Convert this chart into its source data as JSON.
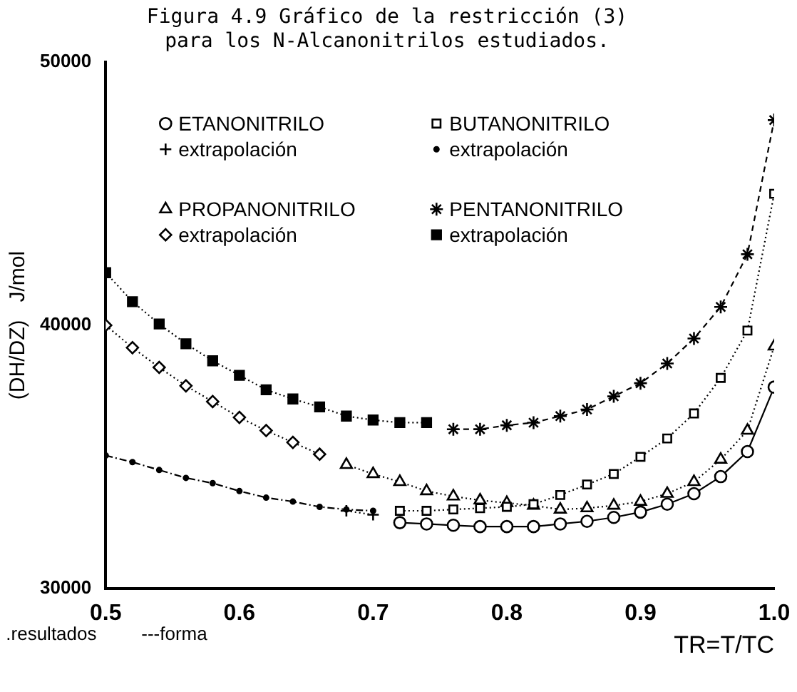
{
  "chart_data": {
    "type": "line",
    "title": "Figura 4.9 Gráfico de la restricción (3)\npara los N-Alcanonitrilos estudiados.",
    "xlabel": "TR=T/TC",
    "ylabel": "(DH/DZ)   J/mol",
    "xlim": [
      0.5,
      1.0
    ],
    "xticks": [
      {
        "value": 0.5,
        "label": "0.5"
      },
      {
        "value": 0.6,
        "label": "0.6"
      },
      {
        "value": 0.7,
        "label": "0.7"
      },
      {
        "value": 0.8,
        "label": "0.8"
      },
      {
        "value": 0.9,
        "label": "0.9"
      },
      {
        "value": 1.0,
        "label": "1.0"
      }
    ],
    "ylim": [
      30000,
      50000
    ],
    "yticks": [
      30000,
      40000,
      50000
    ],
    "grid": false,
    "legend": "top",
    "annotations": [
      ".resultados",
      "---forma"
    ],
    "series": [
      {
        "name": "ETANONITRILO",
        "color": "#000000",
        "marker": "circle",
        "line_style": "solid",
        "x": [
          0.72,
          0.74,
          0.76,
          0.78,
          0.8,
          0.82,
          0.84,
          0.86,
          0.88,
          0.9,
          0.92,
          0.94,
          0.96,
          0.98,
          1.0
        ],
        "values": [
          32500,
          32450,
          32400,
          32350,
          32350,
          32350,
          32450,
          32550,
          32700,
          32900,
          33200,
          33600,
          34250,
          35200,
          37650
        ]
      },
      {
        "name": "extrapolación",
        "color": "#000000",
        "marker": "cross",
        "line_style": "dotted",
        "x": [
          0.68,
          0.7
        ],
        "values": [
          32950,
          32800
        ]
      },
      {
        "name": "PROPANONITRILO",
        "color": "#000000",
        "marker": "triangle",
        "line_style": "dotted",
        "x": [
          0.68,
          0.7,
          0.72,
          0.74,
          0.76,
          0.78,
          0.8,
          0.82,
          0.84,
          0.86,
          0.88,
          0.9,
          0.92,
          0.94,
          0.96,
          0.98,
          1.0
        ],
        "values": [
          34700,
          34350,
          34050,
          33700,
          33500,
          33350,
          33250,
          33150,
          33000,
          33050,
          33150,
          33300,
          33600,
          34050,
          34900,
          36000,
          39200
        ]
      },
      {
        "name": "extrapolación",
        "color": "#000000",
        "marker": "diamond",
        "line_style": "dotted",
        "x": [
          0.5,
          0.52,
          0.54,
          0.56,
          0.58,
          0.6,
          0.62,
          0.64,
          0.66
        ],
        "values": [
          40000,
          39150,
          38400,
          37700,
          37100,
          36500,
          36000,
          35550,
          35100
        ]
      },
      {
        "name": "BUTANONITRILO",
        "color": "#000000",
        "marker": "square",
        "line_style": "dotted",
        "x": [
          0.72,
          0.74,
          0.76,
          0.78,
          0.8,
          0.82,
          0.84,
          0.86,
          0.88,
          0.9,
          0.92,
          0.94,
          0.96,
          0.98,
          1.0
        ],
        "values": [
          32950,
          32950,
          33000,
          33050,
          33100,
          33200,
          33550,
          33950,
          34350,
          35000,
          35700,
          36650,
          38000,
          39800,
          45000
        ]
      },
      {
        "name": "extrapolación",
        "color": "#000000",
        "marker": "circle",
        "line_style": "dashdot",
        "x": [
          0.5,
          0.52,
          0.54,
          0.56,
          0.58,
          0.6,
          0.62,
          0.64,
          0.66,
          0.68,
          0.7
        ],
        "values": [
          35050,
          34800,
          34500,
          34200,
          34000,
          33700,
          33450,
          33300,
          33100,
          33000,
          32950
        ]
      },
      {
        "name": "PENTANONITRILO",
        "color": "#000000",
        "marker": "cross",
        "line_style": "dashed",
        "x": [
          0.76,
          0.78,
          0.8,
          0.82,
          0.84,
          0.86,
          0.88,
          0.9,
          0.92,
          0.94,
          0.96,
          0.98,
          1.0
        ],
        "values": [
          36050,
          36050,
          36200,
          36300,
          36550,
          36800,
          37300,
          37800,
          38550,
          39500,
          40700,
          42700,
          47800
        ]
      },
      {
        "name": "extrapolación",
        "color": "#000000",
        "marker": "square",
        "line_style": "dotted",
        "x": [
          0.5,
          0.52,
          0.54,
          0.56,
          0.58,
          0.6,
          0.62,
          0.64,
          0.66,
          0.68,
          0.7,
          0.72,
          0.74
        ],
        "values": [
          42000,
          40900,
          40050,
          39300,
          38650,
          38100,
          37550,
          37200,
          36900,
          36550,
          36400,
          36300,
          36300
        ]
      }
    ]
  }
}
